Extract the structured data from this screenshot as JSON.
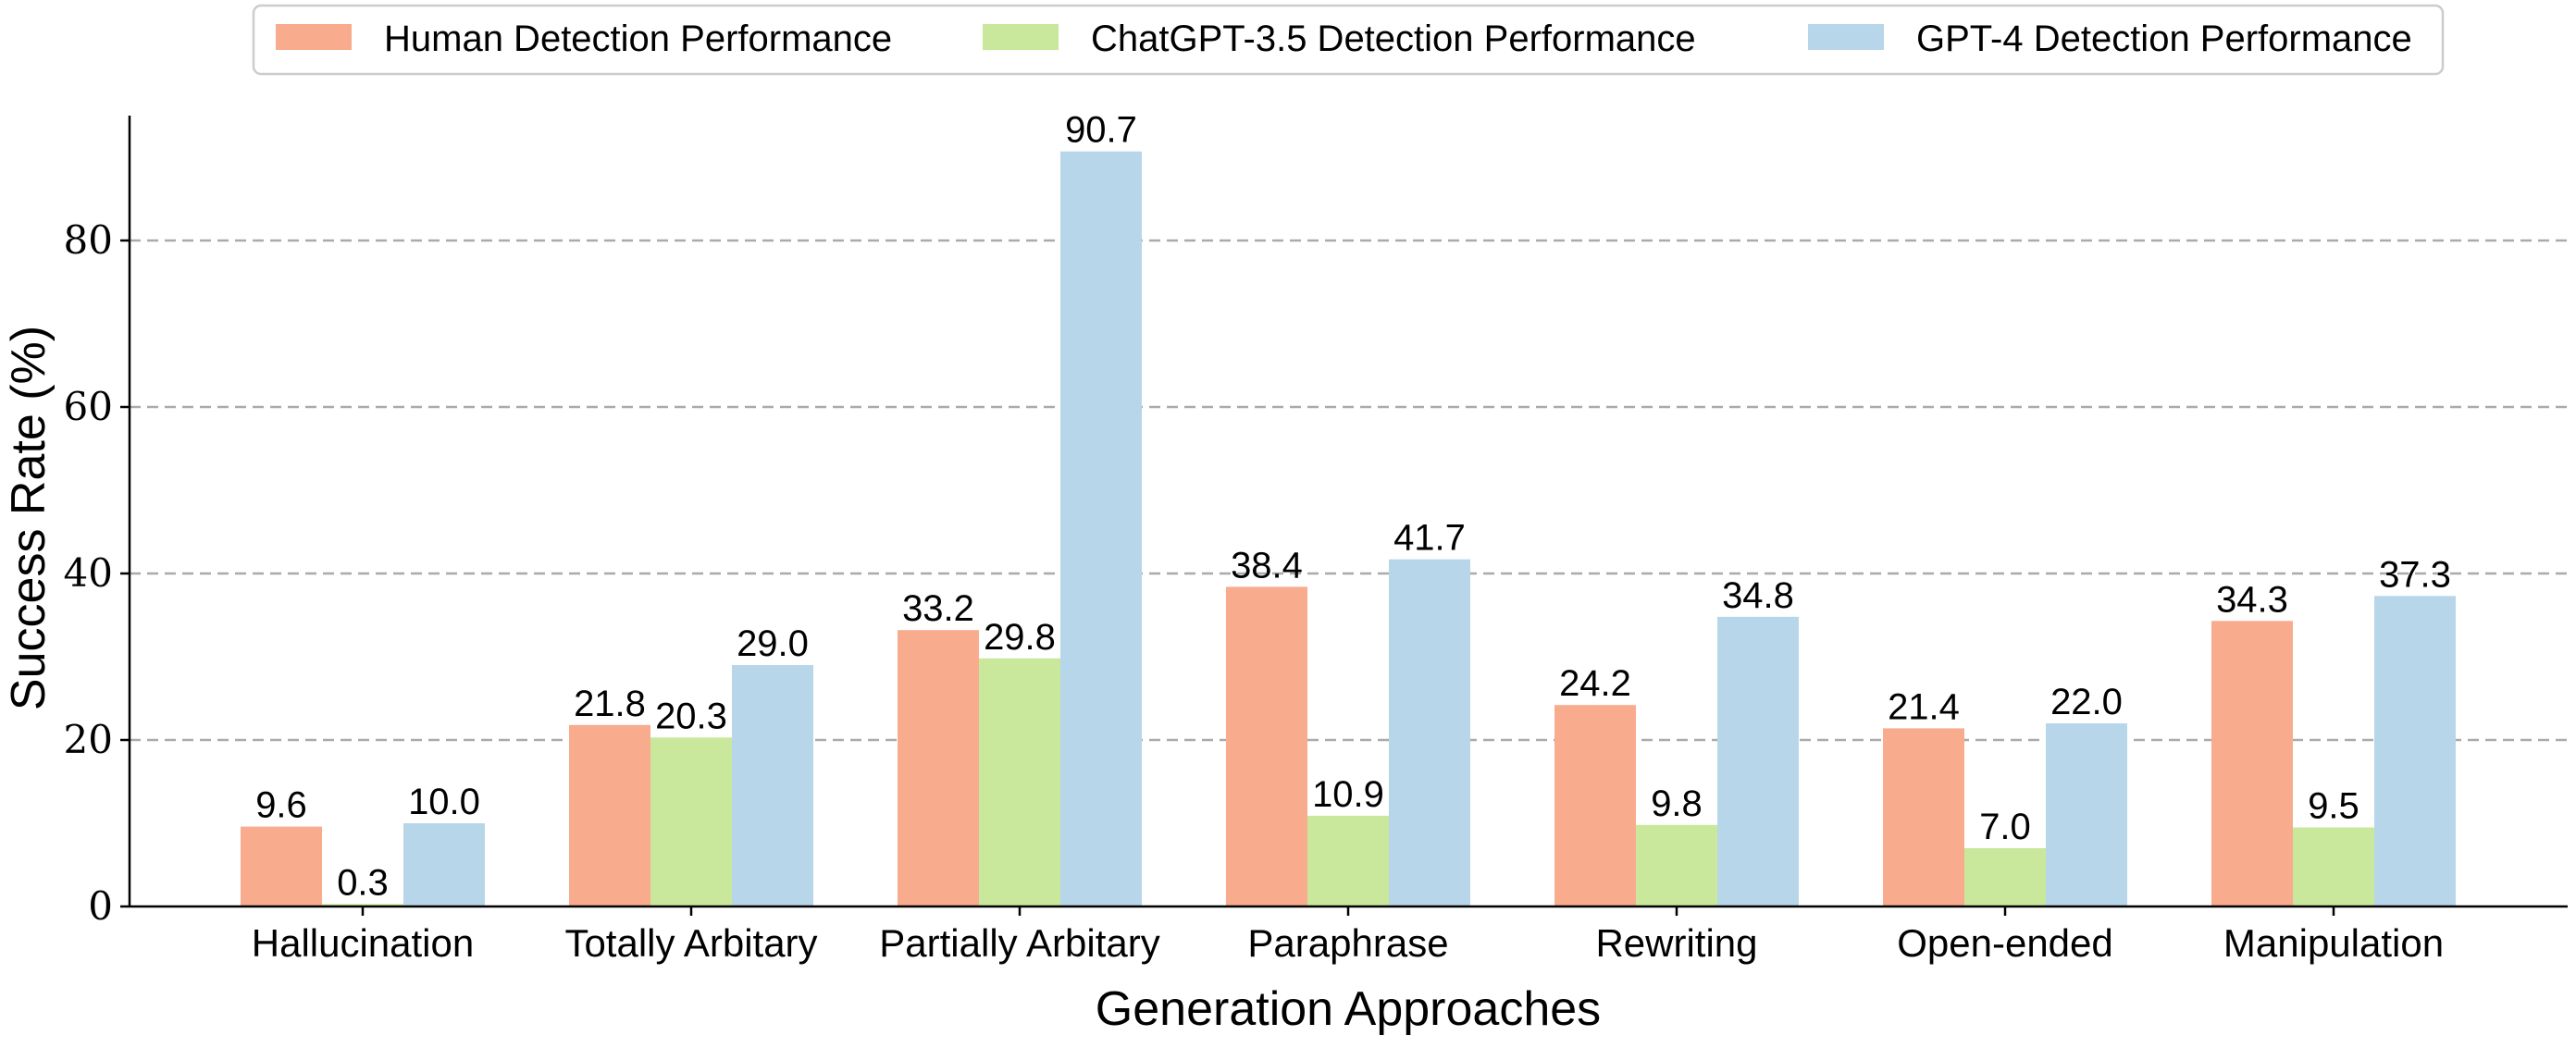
{
  "chart_data": {
    "type": "bar",
    "xlabel": "Generation Approaches",
    "ylabel": "Success Rate (%)",
    "ylim": [
      0,
      95
    ],
    "yticks": [
      0,
      20,
      40,
      60,
      80
    ],
    "grid": "y-dashed",
    "legend_position": "top-center",
    "categories": [
      "Hallucination",
      "Totally Arbitary",
      "Partially Arbitary",
      "Paraphrase",
      "Rewriting",
      "Open-ended",
      "Manipulation"
    ],
    "series": [
      {
        "name": "Human Detection Performance",
        "color": "#f9ab8e",
        "values": [
          9.6,
          21.8,
          33.2,
          38.4,
          24.2,
          21.4,
          34.3
        ],
        "labels": [
          "9.6",
          "21.8",
          "33.2",
          "38.4",
          "24.2",
          "21.4",
          "34.3"
        ]
      },
      {
        "name": "ChatGPT-3.5 Detection Performance",
        "color": "#c9e89b",
        "values": [
          0.3,
          20.3,
          29.8,
          10.9,
          9.8,
          7.0,
          9.5
        ],
        "labels": [
          "0.3",
          "20.3",
          "29.8",
          "10.9",
          "9.8",
          "7.0",
          "9.5"
        ]
      },
      {
        "name": "GPT-4 Detection Performance",
        "color": "#b8d6e9",
        "values": [
          10.0,
          29.0,
          90.7,
          41.7,
          34.8,
          22.0,
          37.3
        ],
        "labels": [
          "10.0",
          "29.0",
          "90.7",
          "41.7",
          "34.8",
          "22.0",
          "37.3"
        ]
      }
    ]
  }
}
